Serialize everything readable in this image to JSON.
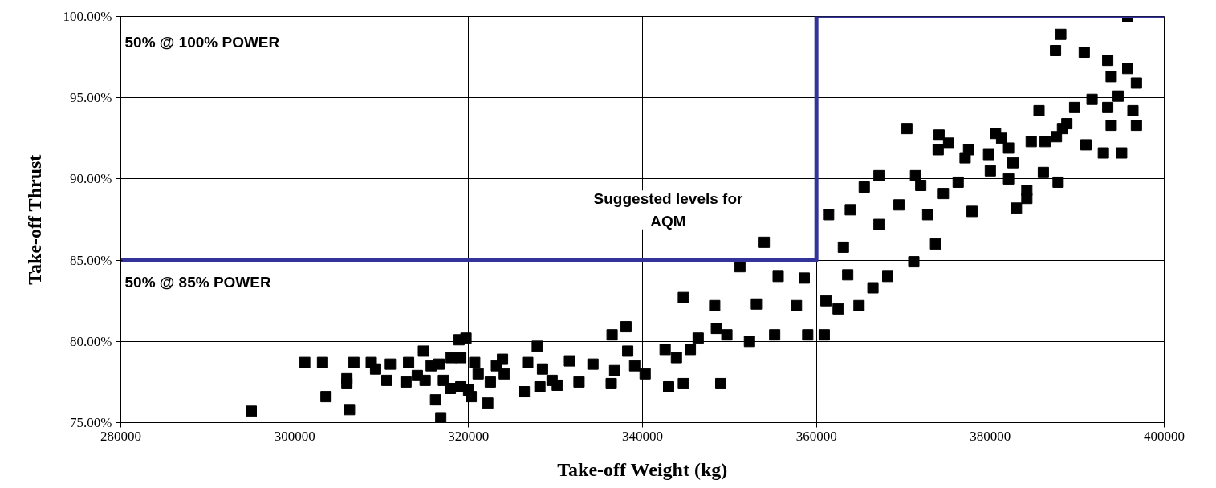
{
  "chart_data": {
    "type": "scatter",
    "xlabel": "Take-off Weight (kg)",
    "ylabel": "Take-off Thrust",
    "xlim": [
      280000,
      400000
    ],
    "xticks": [
      280000,
      300000,
      320000,
      340000,
      360000,
      380000,
      400000
    ],
    "ylim": [
      75,
      100
    ],
    "yticks": [
      {
        "value": 75,
        "label": "75.00%"
      },
      {
        "value": 80,
        "label": "80.00%"
      },
      {
        "value": 85,
        "label": "85.00%"
      },
      {
        "value": 90,
        "label": "90.00%"
      },
      {
        "value": 95,
        "label": "95.00%"
      },
      {
        "value": 100,
        "label": "100.00%"
      }
    ],
    "grid": true,
    "series": [
      {
        "marker": "square",
        "color": "#000000",
        "x": [
          295000,
          301150,
          303200,
          303600,
          306000,
          306000,
          306300,
          306800,
          308800,
          309300,
          310600,
          311000,
          312800,
          313100,
          314100,
          314800,
          315000,
          315700,
          316200,
          316600,
          316800,
          317100,
          317900,
          318000,
          318900,
          319100,
          319100,
          319700,
          320000,
          320300,
          320700,
          321100,
          322200,
          322500,
          323200,
          323900,
          324100,
          326400,
          326800,
          327900,
          328200,
          328500,
          329600,
          330200,
          331600,
          332700,
          334300,
          336400,
          336500,
          336800,
          338100,
          338300,
          339100,
          340300,
          343000,
          344700,
          349000,
          342600,
          343900,
          345500,
          344700,
          348300,
          351200,
          354000,
          355600,
          353100,
          349700,
          352300,
          348500,
          346400,
          355200,
          359000,
          360900,
          358600,
          357700,
          361100,
          362500,
          364900,
          366500,
          363600,
          368200,
          371200,
          373700,
          361400,
          363900,
          365500,
          367200,
          363100,
          367200,
          369500,
          371400,
          370400,
          374100,
          374000,
          375200,
          377100,
          377500,
          376300,
          377900,
          372800,
          372000,
          374600,
          379800,
          380600,
          381300,
          382100,
          380000,
          382600,
          384200,
          384200,
          383000,
          386100,
          387800,
          386300,
          388300,
          388800,
          391000,
          393000,
          395100,
          389700,
          391700,
          393500,
          394700,
          396400,
          396800,
          393900,
          385600,
          393500,
          393900,
          395800,
          396800,
          390800,
          387500,
          388100,
          395800,
          387600,
          384700,
          382100
        ],
        "values": [
          75.7,
          78.7,
          78.7,
          76.6,
          77.7,
          77.4,
          75.8,
          78.7,
          78.7,
          78.3,
          77.6,
          78.6,
          77.5,
          78.7,
          77.9,
          79.4,
          77.6,
          78.5,
          76.4,
          78.6,
          75.3,
          77.6,
          77.1,
          79.0,
          80.1,
          79.0,
          77.2,
          80.2,
          77.0,
          76.6,
          78.7,
          78.0,
          76.2,
          77.5,
          78.5,
          78.9,
          78.0,
          76.9,
          78.7,
          79.7,
          77.2,
          78.3,
          77.6,
          77.3,
          78.8,
          77.5,
          78.6,
          77.4,
          80.4,
          78.2,
          80.9,
          79.4,
          78.5,
          78.0,
          77.2,
          77.4,
          77.4,
          79.5,
          79.0,
          79.5,
          82.7,
          82.2,
          84.6,
          86.1,
          84.0,
          82.3,
          80.4,
          80.0,
          80.8,
          80.2,
          80.4,
          80.4,
          80.4,
          83.9,
          82.2,
          82.5,
          82.0,
          82.2,
          83.3,
          84.1,
          84.0,
          84.9,
          86.0,
          87.8,
          88.1,
          89.5,
          90.2,
          85.8,
          87.2,
          88.4,
          90.2,
          93.1,
          92.7,
          91.8,
          92.2,
          91.3,
          91.8,
          89.8,
          88.0,
          87.8,
          89.6,
          89.1,
          91.5,
          92.8,
          92.5,
          91.9,
          90.5,
          91.0,
          89.3,
          88.8,
          88.2,
          90.4,
          89.8,
          92.3,
          93.1,
          93.4,
          92.1,
          91.6,
          91.6,
          94.4,
          94.9,
          94.4,
          95.1,
          94.2,
          93.3,
          93.3,
          94.2,
          97.3,
          96.3,
          96.8,
          95.9,
          97.8,
          97.9,
          98.9,
          100.0,
          92.6,
          92.3,
          90.0
        ]
      },
      {
        "type": "line",
        "color": "#333399",
        "x": [
          280000,
          360000,
          360000,
          400000
        ],
        "values": [
          85,
          85,
          100,
          100
        ]
      }
    ],
    "annotations": [
      "50% @ 100% POWER",
      "Suggested levels for\nAQM",
      "50% @ 85% POWER"
    ]
  }
}
